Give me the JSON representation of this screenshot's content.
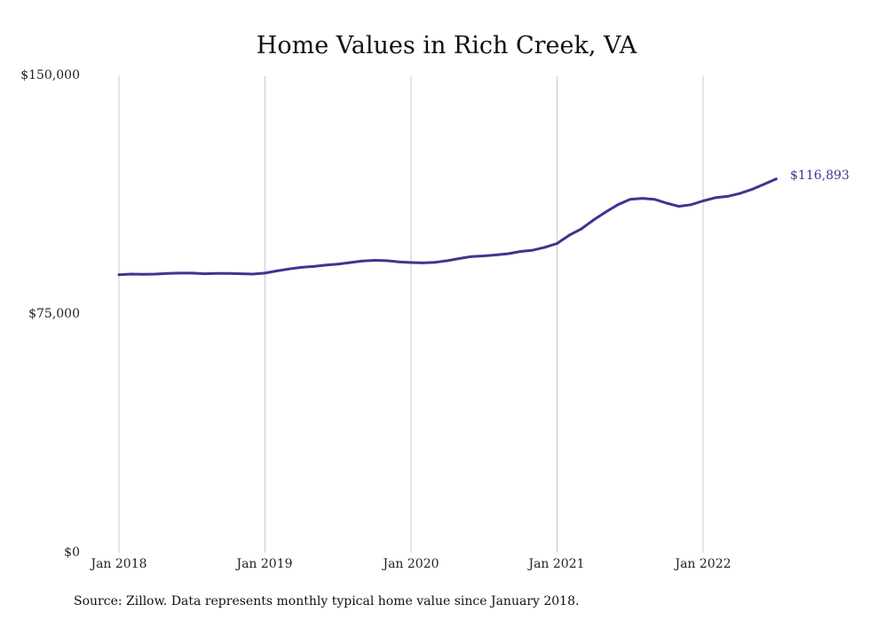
{
  "chart_data": {
    "type": "line",
    "title": "Home Values in Rich Creek, VA",
    "xlabel": "",
    "ylabel": "",
    "source": "Source: Zillow. Data represents monthly typical home value since January 2018.",
    "y_ticks": [
      "$0",
      "$75,000",
      "$150,000"
    ],
    "ylim": [
      0,
      150000
    ],
    "x_ticks": [
      "Jan 2018",
      "Jan 2019",
      "Jan 2020",
      "Jan 2021",
      "Jan 2022"
    ],
    "grid": "vertical lines at each January",
    "line_color": "#3d3590",
    "end_label": "$116,893",
    "series": [
      {
        "x": [
          "2018-01",
          "2018-02",
          "2018-03",
          "2018-04",
          "2018-05",
          "2018-06",
          "2018-07",
          "2018-08",
          "2018-09",
          "2018-10",
          "2018-11",
          "2018-12",
          "2019-01",
          "2019-02",
          "2019-03",
          "2019-04",
          "2019-05",
          "2019-06",
          "2019-07",
          "2019-08",
          "2019-09",
          "2019-10",
          "2019-11",
          "2019-12",
          "2020-01",
          "2020-02",
          "2020-03",
          "2020-04",
          "2020-05",
          "2020-06",
          "2020-07",
          "2020-08",
          "2020-09",
          "2020-10",
          "2020-11",
          "2020-12",
          "2021-01",
          "2021-02",
          "2021-03",
          "2021-04",
          "2021-05",
          "2021-06",
          "2021-07",
          "2021-08",
          "2021-09",
          "2021-10",
          "2021-11",
          "2021-12",
          "2022-01",
          "2022-02",
          "2022-03",
          "2022-04",
          "2022-05",
          "2022-06",
          "2022-07"
        ],
        "values": [
          86800,
          87000,
          86900,
          87000,
          87200,
          87300,
          87300,
          87100,
          87200,
          87200,
          87100,
          87000,
          87300,
          88000,
          88600,
          89100,
          89400,
          89800,
          90100,
          90600,
          91100,
          91300,
          91200,
          90800,
          90600,
          90500,
          90700,
          91200,
          91900,
          92500,
          92700,
          93000,
          93400,
          94100,
          94500,
          95400,
          96600,
          99200,
          101200,
          104000,
          106500,
          108800,
          110500,
          110800,
          110500,
          109300,
          108300,
          108800,
          110000,
          111000,
          111400,
          112300,
          113600,
          115200,
          116893
        ]
      }
    ]
  }
}
